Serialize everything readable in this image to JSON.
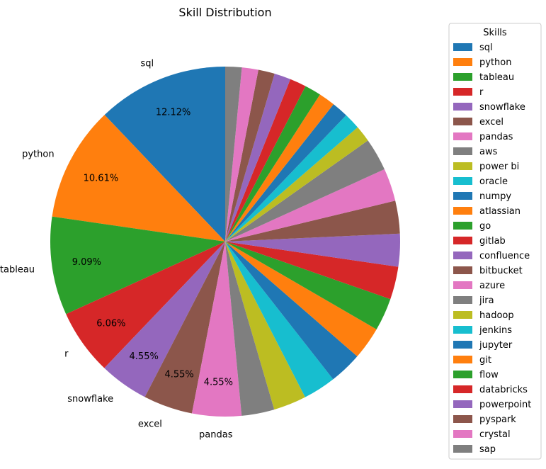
{
  "chart_data": {
    "type": "pie",
    "title": "Skill Distribution",
    "legend_title": "Skills",
    "legend_placement": "right",
    "start_angle_deg": 90,
    "direction": "counterclockwise",
    "slices": [
      {
        "label": "sql",
        "percent": 12.12,
        "color": "#1f77b4",
        "show_label": true,
        "show_pct": true
      },
      {
        "label": "python",
        "percent": 10.61,
        "color": "#ff7f0e",
        "show_label": true,
        "show_pct": true
      },
      {
        "label": "tableau",
        "percent": 9.09,
        "color": "#2ca02c",
        "show_label": true,
        "show_pct": true
      },
      {
        "label": "r",
        "percent": 6.06,
        "color": "#d62728",
        "show_label": true,
        "show_pct": true
      },
      {
        "label": "snowflake",
        "percent": 4.55,
        "color": "#9467bd",
        "show_label": true,
        "show_pct": true
      },
      {
        "label": "excel",
        "percent": 4.55,
        "color": "#8c564b",
        "show_label": true,
        "show_pct": true
      },
      {
        "label": "pandas",
        "percent": 4.55,
        "color": "#e377c2",
        "show_label": true,
        "show_pct": true
      },
      {
        "label": "aws",
        "percent": 3.03,
        "color": "#7f7f7f",
        "show_label": false,
        "show_pct": false
      },
      {
        "label": "power bi",
        "percent": 3.03,
        "color": "#bcbd22",
        "show_label": false,
        "show_pct": false
      },
      {
        "label": "oracle",
        "percent": 3.03,
        "color": "#17becf",
        "show_label": false,
        "show_pct": false
      },
      {
        "label": "numpy",
        "percent": 3.03,
        "color": "#1f77b4",
        "show_label": false,
        "show_pct": false
      },
      {
        "label": "atlassian",
        "percent": 3.03,
        "color": "#ff7f0e",
        "show_label": false,
        "show_pct": false
      },
      {
        "label": "go",
        "percent": 3.03,
        "color": "#2ca02c",
        "show_label": false,
        "show_pct": false
      },
      {
        "label": "gitlab",
        "percent": 3.03,
        "color": "#d62728",
        "show_label": false,
        "show_pct": false
      },
      {
        "label": "confluence",
        "percent": 3.03,
        "color": "#9467bd",
        "show_label": false,
        "show_pct": false
      },
      {
        "label": "bitbucket",
        "percent": 3.03,
        "color": "#8c564b",
        "show_label": false,
        "show_pct": false
      },
      {
        "label": "azure",
        "percent": 3.03,
        "color": "#e377c2",
        "show_label": false,
        "show_pct": false
      },
      {
        "label": "jira",
        "percent": 3.03,
        "color": "#7f7f7f",
        "show_label": false,
        "show_pct": false
      },
      {
        "label": "hadoop",
        "percent": 1.52,
        "color": "#bcbd22",
        "show_label": false,
        "show_pct": false
      },
      {
        "label": "jenkins",
        "percent": 1.52,
        "color": "#17becf",
        "show_label": false,
        "show_pct": false
      },
      {
        "label": "jupyter",
        "percent": 1.52,
        "color": "#1f77b4",
        "show_label": false,
        "show_pct": false
      },
      {
        "label": "git",
        "percent": 1.52,
        "color": "#ff7f0e",
        "show_label": false,
        "show_pct": false
      },
      {
        "label": "flow",
        "percent": 1.52,
        "color": "#2ca02c",
        "show_label": false,
        "show_pct": false
      },
      {
        "label": "databricks",
        "percent": 1.52,
        "color": "#d62728",
        "show_label": false,
        "show_pct": false
      },
      {
        "label": "powerpoint",
        "percent": 1.52,
        "color": "#9467bd",
        "show_label": false,
        "show_pct": false
      },
      {
        "label": "pyspark",
        "percent": 1.52,
        "color": "#8c564b",
        "show_label": false,
        "show_pct": false
      },
      {
        "label": "crystal",
        "percent": 1.52,
        "color": "#e377c2",
        "show_label": false,
        "show_pct": false
      },
      {
        "label": "sap",
        "percent": 1.52,
        "color": "#7f7f7f",
        "show_label": false,
        "show_pct": false
      }
    ]
  }
}
